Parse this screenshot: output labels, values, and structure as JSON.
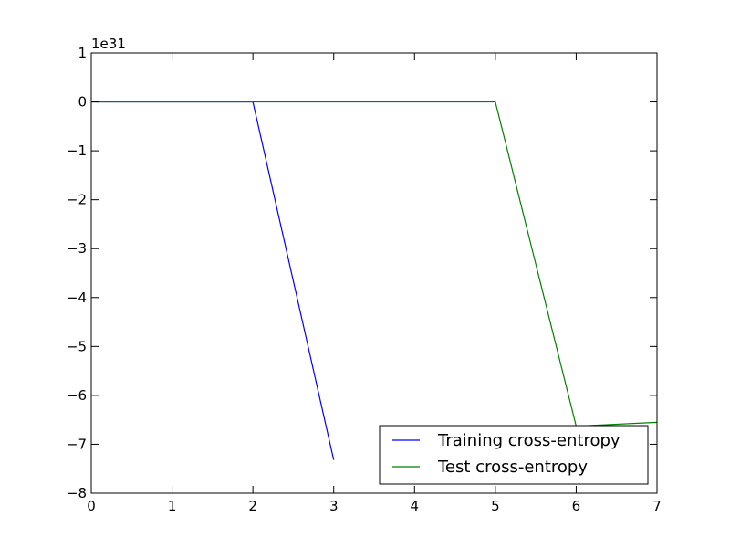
{
  "chart_data": {
    "type": "line",
    "title": "",
    "xlabel": "",
    "ylabel": "",
    "y_offset_label": "1e31",
    "xlim": [
      0,
      7
    ],
    "ylim": [
      -8,
      1
    ],
    "x_ticks": [
      0,
      1,
      2,
      3,
      4,
      5,
      6,
      7
    ],
    "y_ticks": [
      1,
      0,
      -1,
      -2,
      -3,
      -4,
      -5,
      -6,
      -7,
      -8
    ],
    "x_tick_labels": [
      "0",
      "1",
      "2",
      "3",
      "4",
      "5",
      "6",
      "7"
    ],
    "y_tick_labels": [
      "1",
      "0",
      "−1",
      "−2",
      "−3",
      "−4",
      "−5",
      "−6",
      "−7",
      "−8"
    ],
    "grid": false,
    "legend_position": "lower-right",
    "series": [
      {
        "name": "Training cross-entropy",
        "color": "#0000ff",
        "x": [
          0,
          1,
          2,
          3
        ],
        "y": [
          0,
          0,
          0,
          -7.32
        ]
      },
      {
        "name": "Test cross-entropy",
        "color": "#008000",
        "x": [
          0,
          1,
          2,
          3,
          4,
          5,
          6,
          7
        ],
        "y": [
          0,
          0,
          0,
          0,
          0,
          0,
          -6.63,
          -6.55
        ]
      }
    ]
  }
}
